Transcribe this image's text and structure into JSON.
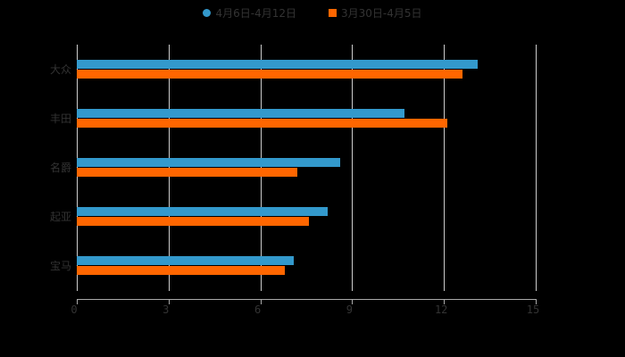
{
  "chart_data": {
    "type": "bar",
    "orientation": "horizontal",
    "title": "",
    "categories": [
      "大众",
      "丰田",
      "名爵",
      "起亚",
      "宝马"
    ],
    "series": [
      {
        "name": "4月6日-4月12日",
        "color": "#3399cc",
        "values": [
          13.1,
          10.7,
          8.6,
          8.2,
          7.1
        ]
      },
      {
        "name": "3月30日-4月5日",
        "color": "#ff6600",
        "values": [
          12.6,
          12.1,
          7.2,
          7.6,
          6.8
        ]
      }
    ],
    "xlabel": "",
    "ylabel": "",
    "xlim": [
      0,
      15
    ],
    "xticks": [
      "0",
      "3",
      "6",
      "9",
      "12",
      "15"
    ],
    "grid": true,
    "legend_position": "top"
  },
  "legend": {
    "items": [
      {
        "label": "4月6日-4月12日",
        "color": "#3399cc",
        "shape": "circle"
      },
      {
        "label": "3月30日-4月5日",
        "color": "#ff6600",
        "shape": "square"
      }
    ]
  }
}
